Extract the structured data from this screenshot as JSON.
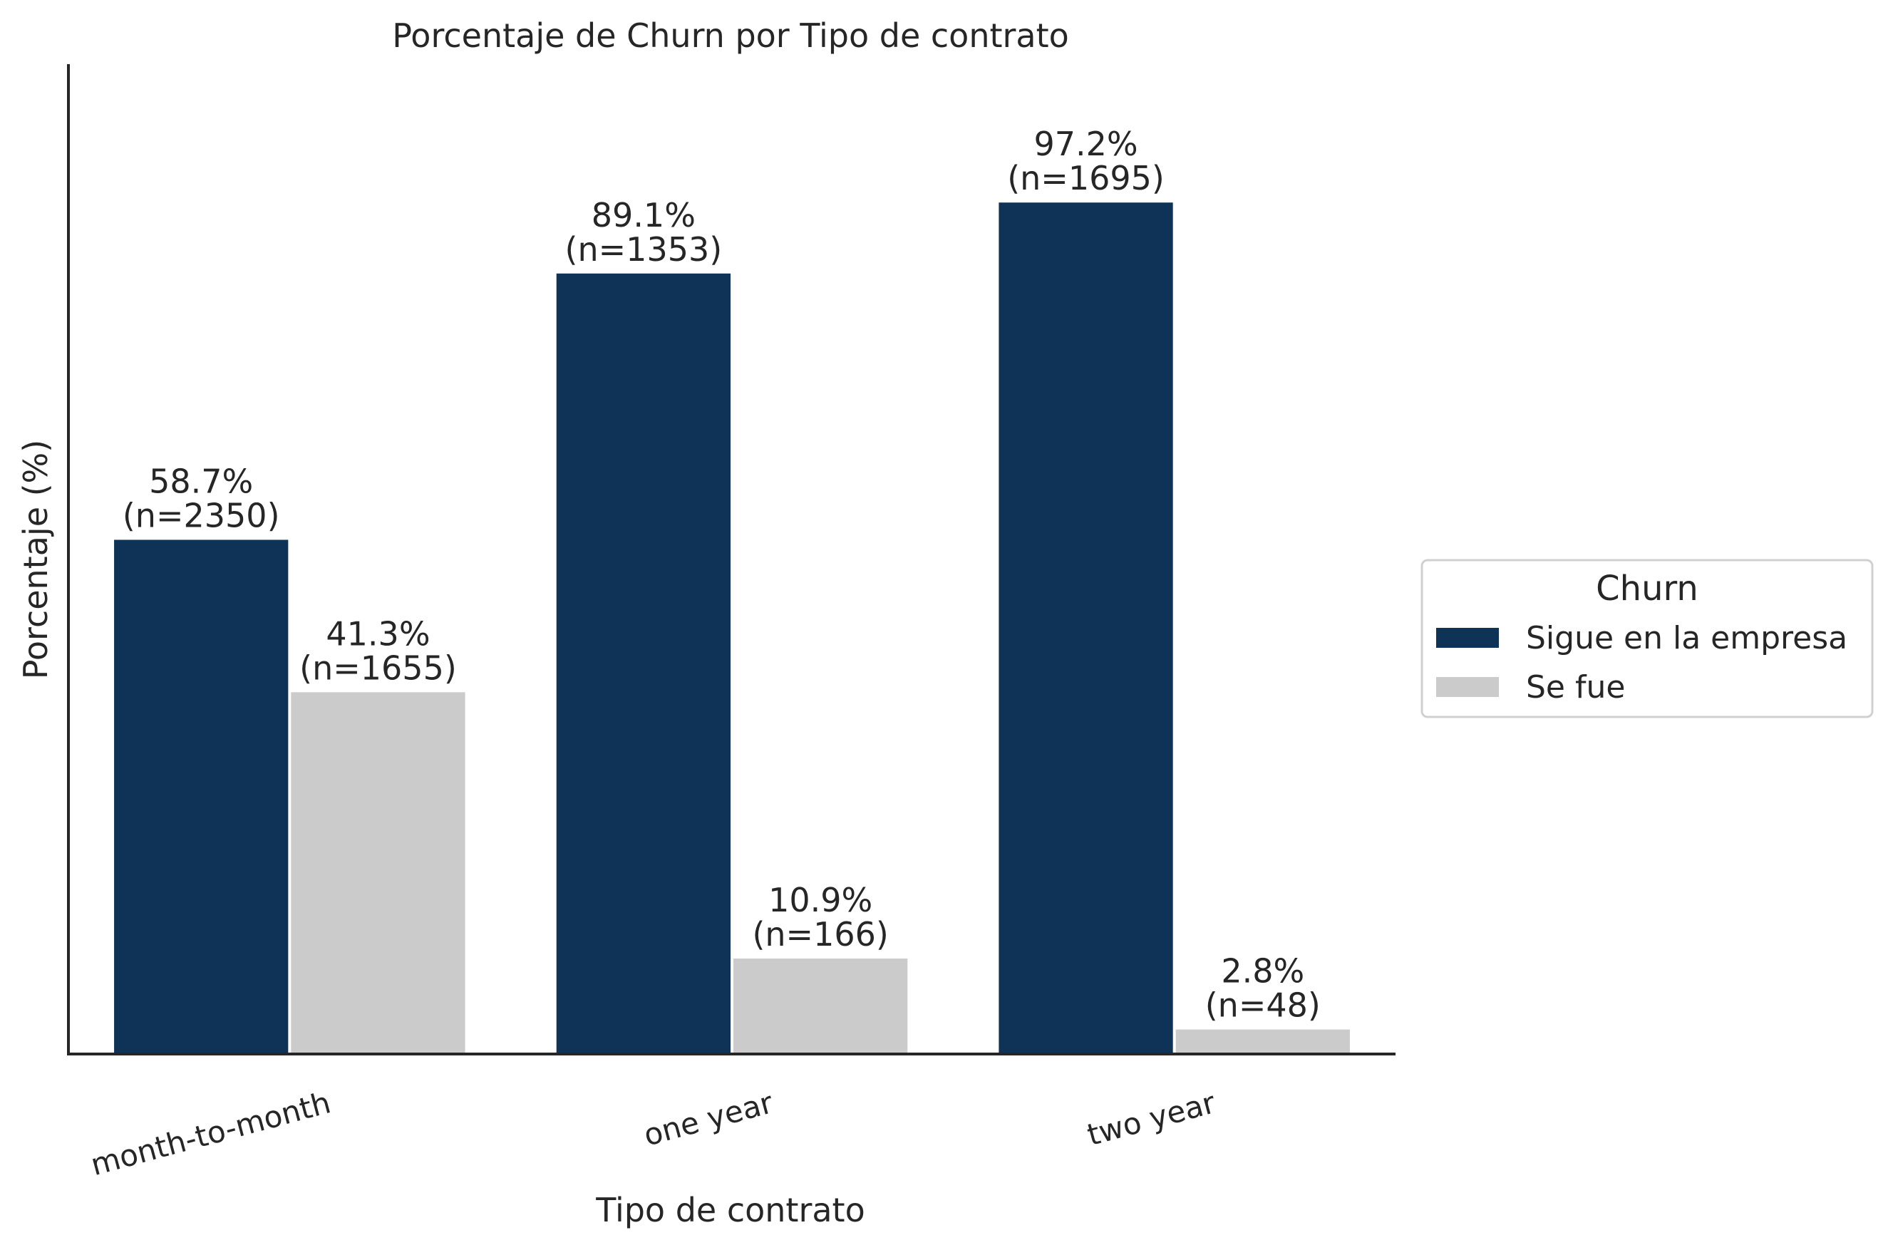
{
  "chart_data": {
    "type": "bar",
    "title": "Porcentaje de Churn por Tipo de contrato",
    "xlabel": "Tipo de contrato",
    "ylabel": "Porcentaje (%)",
    "categories": [
      "month-to-month",
      "one year",
      "two year"
    ],
    "ylim": [
      0,
      113
    ],
    "grid": false,
    "y_ticks_shown": false,
    "legend": {
      "title": "Churn",
      "placement": "center-right, outside plot"
    },
    "series": [
      {
        "name": "Sigue en la empresa",
        "color": "#0f3356",
        "values": [
          58.7,
          89.1,
          97.2
        ],
        "labels": [
          "58.7%",
          "89.1%",
          "97.2%"
        ],
        "counts": [
          "(n=2350)",
          "(n=1353)",
          "(n=1695)"
        ]
      },
      {
        "name": "Se fue",
        "color": "#cbcbcb",
        "values": [
          41.3,
          10.9,
          2.8
        ],
        "labels": [
          "41.3%",
          "10.9%",
          "2.8%"
        ],
        "counts": [
          "(n=1655)",
          "(n=166)",
          "(n=48)"
        ]
      }
    ]
  }
}
